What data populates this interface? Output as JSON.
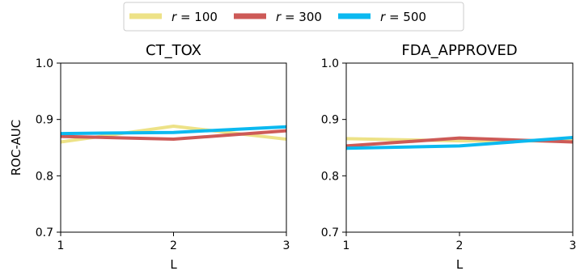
{
  "legend": {
    "entries": [
      {
        "pre": "r",
        "post": " = 100"
      },
      {
        "pre": "r",
        "post": " = 300"
      },
      {
        "pre": "r",
        "post": " = 500"
      }
    ]
  },
  "chart_data": [
    {
      "type": "line",
      "title": "CT_TOX",
      "xlabel": "L",
      "ylabel": "ROC-AUC",
      "x": [
        1,
        2,
        3
      ],
      "xticks": [
        "1",
        "2",
        "3"
      ],
      "yticks": [
        "0.7",
        "0.8",
        "0.9",
        "1.0"
      ],
      "ylim": [
        0.7,
        1.0
      ],
      "grid": false,
      "legend_position": "top-center",
      "series": [
        {
          "name": "r = 100",
          "color": "#ede287",
          "values": [
            0.86,
            0.888,
            0.865
          ]
        },
        {
          "name": "r = 300",
          "color": "#cd5a57",
          "values": [
            0.87,
            0.865,
            0.88
          ]
        },
        {
          "name": "r = 500",
          "color": "#0bb9f0",
          "values": [
            0.875,
            0.877,
            0.887
          ]
        }
      ]
    },
    {
      "type": "line",
      "title": "FDA_APPROVED",
      "xlabel": "L",
      "ylabel": "",
      "x": [
        1,
        2,
        3
      ],
      "xticks": [
        "1",
        "2",
        "3"
      ],
      "yticks": [
        "0.7",
        "0.8",
        "0.9",
        "1.0"
      ],
      "ylim": [
        0.7,
        1.0
      ],
      "grid": false,
      "legend_position": "top-center",
      "series": [
        {
          "name": "r = 100",
          "color": "#ede287",
          "values": [
            0.866,
            0.862,
            0.862
          ]
        },
        {
          "name": "r = 300",
          "color": "#cd5a57",
          "values": [
            0.853,
            0.867,
            0.86
          ]
        },
        {
          "name": "r = 500",
          "color": "#0bb9f0",
          "values": [
            0.849,
            0.853,
            0.868
          ]
        }
      ]
    }
  ]
}
